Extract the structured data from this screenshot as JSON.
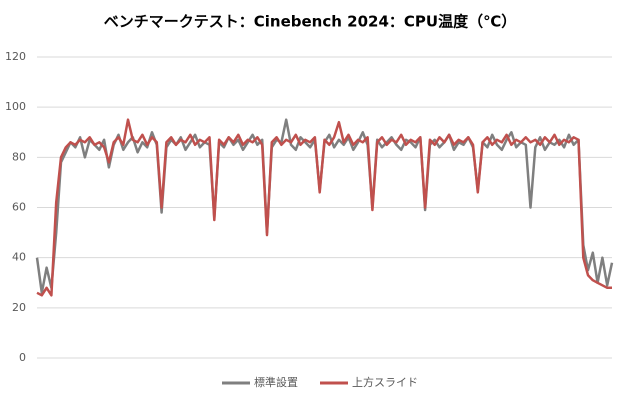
{
  "chart_data": {
    "type": "line",
    "title": "ベンチマークテスト：Cinebench 2024：CPU温度（℃）",
    "ylim": [
      0,
      120
    ],
    "yticks": [
      0,
      20,
      40,
      60,
      80,
      100,
      120
    ],
    "grid": true,
    "legend": "bottom",
    "series": [
      {
        "name": "標準設置",
        "color": "#7f7f7f",
        "values": [
          40,
          26,
          36,
          28,
          50,
          78,
          82,
          86,
          84,
          88,
          80,
          87,
          85,
          83,
          87,
          76,
          85,
          89,
          83,
          86,
          88,
          82,
          86,
          84,
          90,
          85,
          58,
          84,
          87,
          85,
          88,
          83,
          86,
          89,
          84,
          86,
          85,
          56,
          86,
          84,
          88,
          85,
          87,
          83,
          86,
          89,
          85,
          87,
          50,
          84,
          87,
          86,
          95,
          85,
          83,
          88,
          86,
          84,
          87,
          67,
          86,
          89,
          84,
          87,
          85,
          88,
          83,
          86,
          90,
          85,
          60,
          87,
          84,
          86,
          88,
          85,
          83,
          87,
          86,
          84,
          88,
          59,
          85,
          87,
          84,
          86,
          89,
          83,
          86,
          85,
          88,
          84,
          67,
          86,
          84,
          89,
          85,
          83,
          87,
          90,
          84,
          86,
          85,
          60,
          84,
          88,
          83,
          86,
          85,
          87,
          84,
          89,
          85,
          87,
          45,
          35,
          42,
          30,
          40,
          29,
          38
        ]
      },
      {
        "name": "上方スライド",
        "color": "#c0504d",
        "values": [
          26,
          25,
          28,
          25,
          62,
          80,
          84,
          86,
          85,
          87,
          86,
          88,
          85,
          86,
          84,
          78,
          86,
          88,
          85,
          95,
          87,
          86,
          89,
          85,
          88,
          86,
          60,
          86,
          88,
          85,
          87,
          86,
          89,
          85,
          87,
          86,
          88,
          55,
          87,
          85,
          88,
          86,
          89,
          85,
          87,
          86,
          88,
          85,
          49,
          86,
          88,
          85,
          87,
          86,
          89,
          85,
          87,
          86,
          88,
          66,
          87,
          85,
          88,
          94,
          86,
          89,
          85,
          87,
          86,
          88,
          59,
          86,
          88,
          85,
          87,
          86,
          89,
          85,
          87,
          86,
          88,
          60,
          87,
          85,
          88,
          86,
          89,
          85,
          87,
          86,
          88,
          85,
          66,
          86,
          88,
          85,
          87,
          86,
          89,
          85,
          87,
          86,
          88,
          86,
          87,
          85,
          88,
          86,
          89,
          85,
          87,
          86,
          88,
          87,
          40,
          33,
          31,
          30,
          29,
          28,
          28
        ]
      }
    ]
  }
}
